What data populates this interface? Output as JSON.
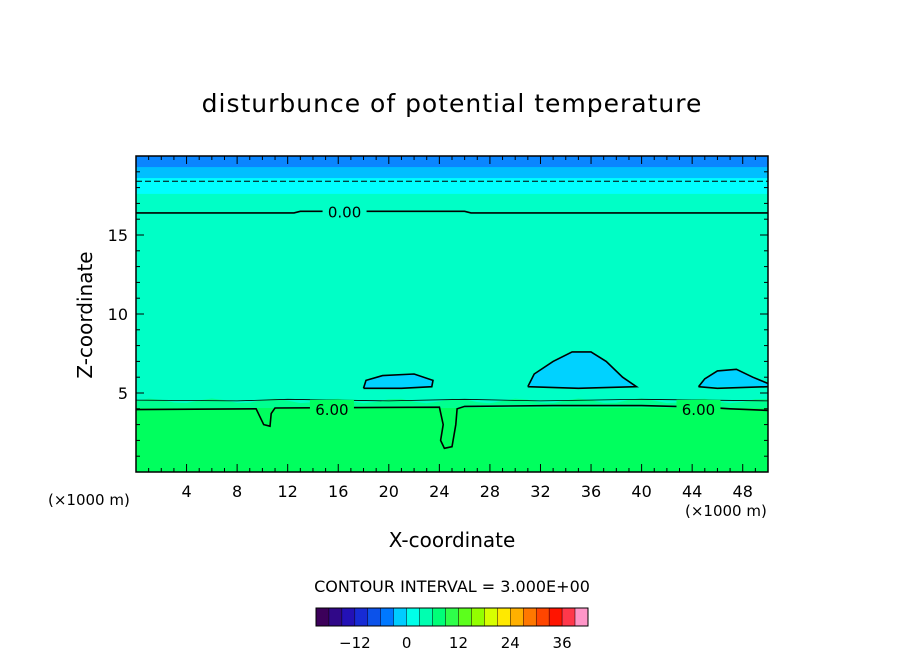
{
  "chart_data": {
    "type": "heatmap",
    "title": "disturbunce of potential temperature",
    "xlabel": "X-coordinate",
    "ylabel": "Z-coordinate",
    "xunit_left": "(×1000 m)",
    "xunit_right": "(×1000 m)",
    "xlim": [
      0,
      50
    ],
    "ylim": [
      0,
      20
    ],
    "xticks": [
      4,
      8,
      12,
      16,
      20,
      24,
      28,
      32,
      36,
      40,
      44,
      48
    ],
    "yticks": [
      5,
      10,
      15
    ],
    "contour_labels": [
      {
        "text": "0.00",
        "x": 16.5,
        "z": 16.5
      },
      {
        "text": "6.00",
        "x": 15.5,
        "z": 4.0
      },
      {
        "text": "6.00",
        "x": 44.5,
        "z": 4.0
      }
    ],
    "contour_interval_text": "CONTOUR INTERVAL = 3.000E+00",
    "colorbar": {
      "min": -21,
      "max": 42,
      "step": 3,
      "ticks": [
        -12,
        0,
        12,
        24,
        36
      ]
    },
    "fill_colors": {
      "top": "#0a86ff",
      "upper": "#00bfff",
      "mid": "#00ffff",
      "main": "#00ffc6",
      "cool": "#00d2ff",
      "low": "#00ff5e",
      "band": "#00ff90"
    }
  }
}
